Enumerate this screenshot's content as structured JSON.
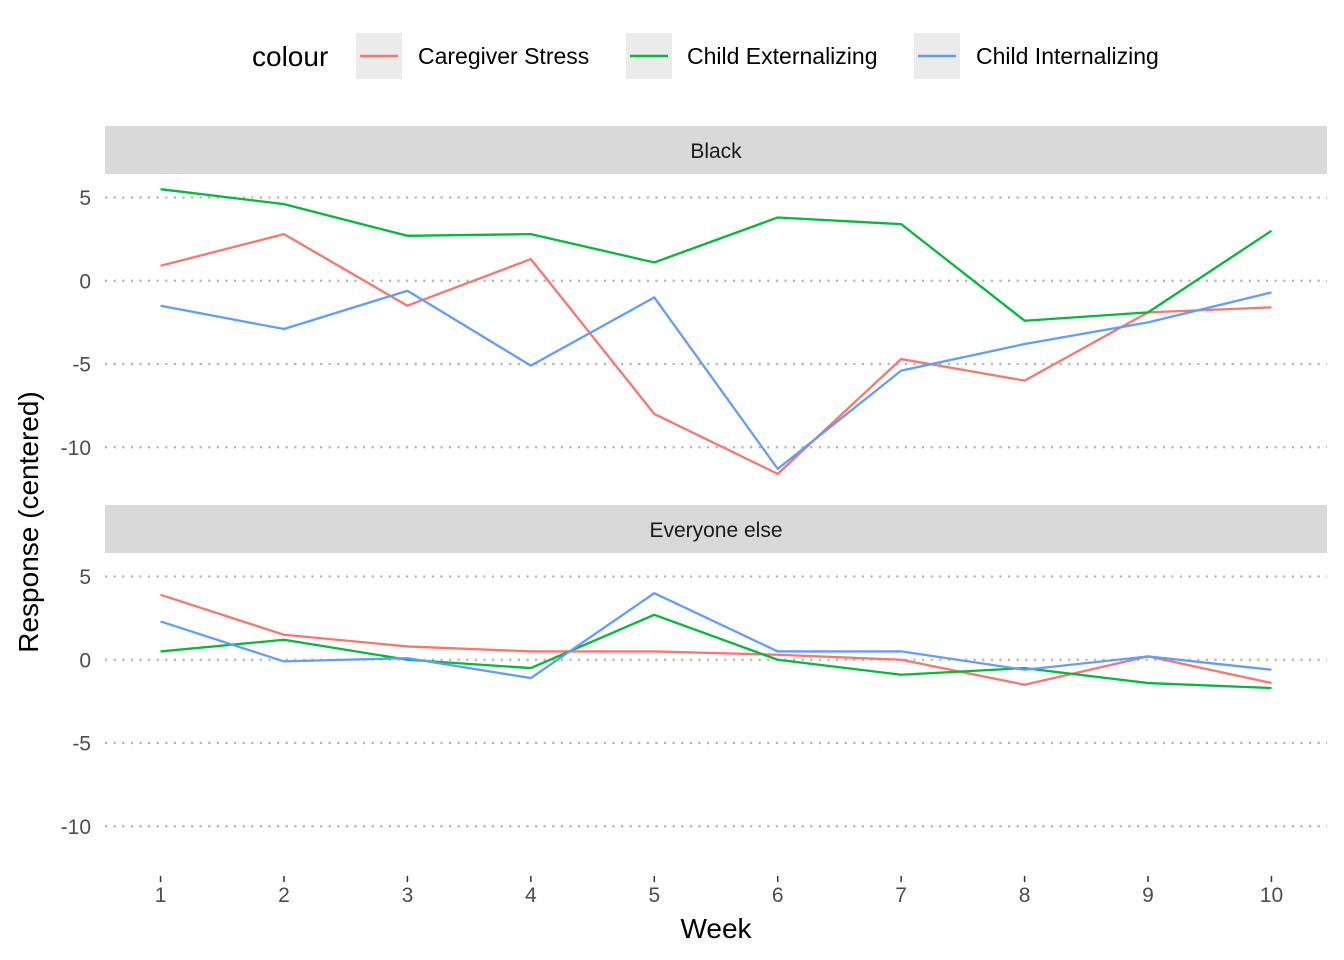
{
  "legend": {
    "title": "colour",
    "entries": [
      {
        "label": "Caregiver Stress",
        "color": "#F8766D"
      },
      {
        "label": "Child Externalizing",
        "color": "#00BA38"
      },
      {
        "label": "Child Internalizing",
        "color": "#619CFF"
      }
    ]
  },
  "axes": {
    "xlabel": "Week",
    "ylabel": "Response (centered)"
  },
  "chart_data": {
    "type": "line",
    "x": [
      1,
      2,
      3,
      4,
      5,
      6,
      7,
      8,
      9,
      10
    ],
    "x_ticks": [
      "1",
      "2",
      "3",
      "4",
      "5",
      "6",
      "7",
      "8",
      "9",
      "10"
    ],
    "y_ticks": [
      5,
      0,
      -5,
      -10
    ],
    "y_tick_labels": [
      "5",
      "0",
      "-5",
      "-10"
    ],
    "ylim": [
      -12.3,
      6.2
    ],
    "xlim": [
      0.55,
      10.45
    ],
    "grid": "major y, dotted",
    "legend_position": "top",
    "facets": [
      {
        "label": "Black",
        "series": [
          {
            "name": "Caregiver Stress",
            "color": "#F8766D",
            "values": [
              0.9,
              2.8,
              -1.5,
              1.3,
              -8.0,
              -11.6,
              -4.7,
              -6.0,
              -1.9,
              -1.6
            ]
          },
          {
            "name": "Child Externalizing",
            "color": "#00BA38",
            "values": [
              5.5,
              4.6,
              2.7,
              2.8,
              1.1,
              3.8,
              3.4,
              -2.4,
              -1.9,
              3.0
            ]
          },
          {
            "name": "Child Internalizing",
            "color": "#619CFF",
            "values": [
              -1.5,
              -2.9,
              -0.6,
              -5.1,
              -1.0,
              -11.3,
              -5.4,
              -3.8,
              -2.5,
              -0.7
            ]
          }
        ]
      },
      {
        "label": "Everyone else",
        "series": [
          {
            "name": "Caregiver Stress",
            "color": "#F8766D",
            "values": [
              3.9,
              1.5,
              0.8,
              0.5,
              0.5,
              0.3,
              0.0,
              -1.5,
              0.2,
              -1.4
            ]
          },
          {
            "name": "Child Externalizing",
            "color": "#00BA38",
            "values": [
              0.5,
              1.2,
              0.0,
              -0.5,
              2.7,
              0.0,
              -0.9,
              -0.5,
              -1.4,
              -1.7
            ]
          },
          {
            "name": "Child Internalizing",
            "color": "#619CFF",
            "values": [
              2.3,
              -0.1,
              0.1,
              -1.1,
              4.0,
              0.5,
              0.5,
              -0.6,
              0.2,
              -0.6
            ]
          }
        ]
      }
    ]
  }
}
